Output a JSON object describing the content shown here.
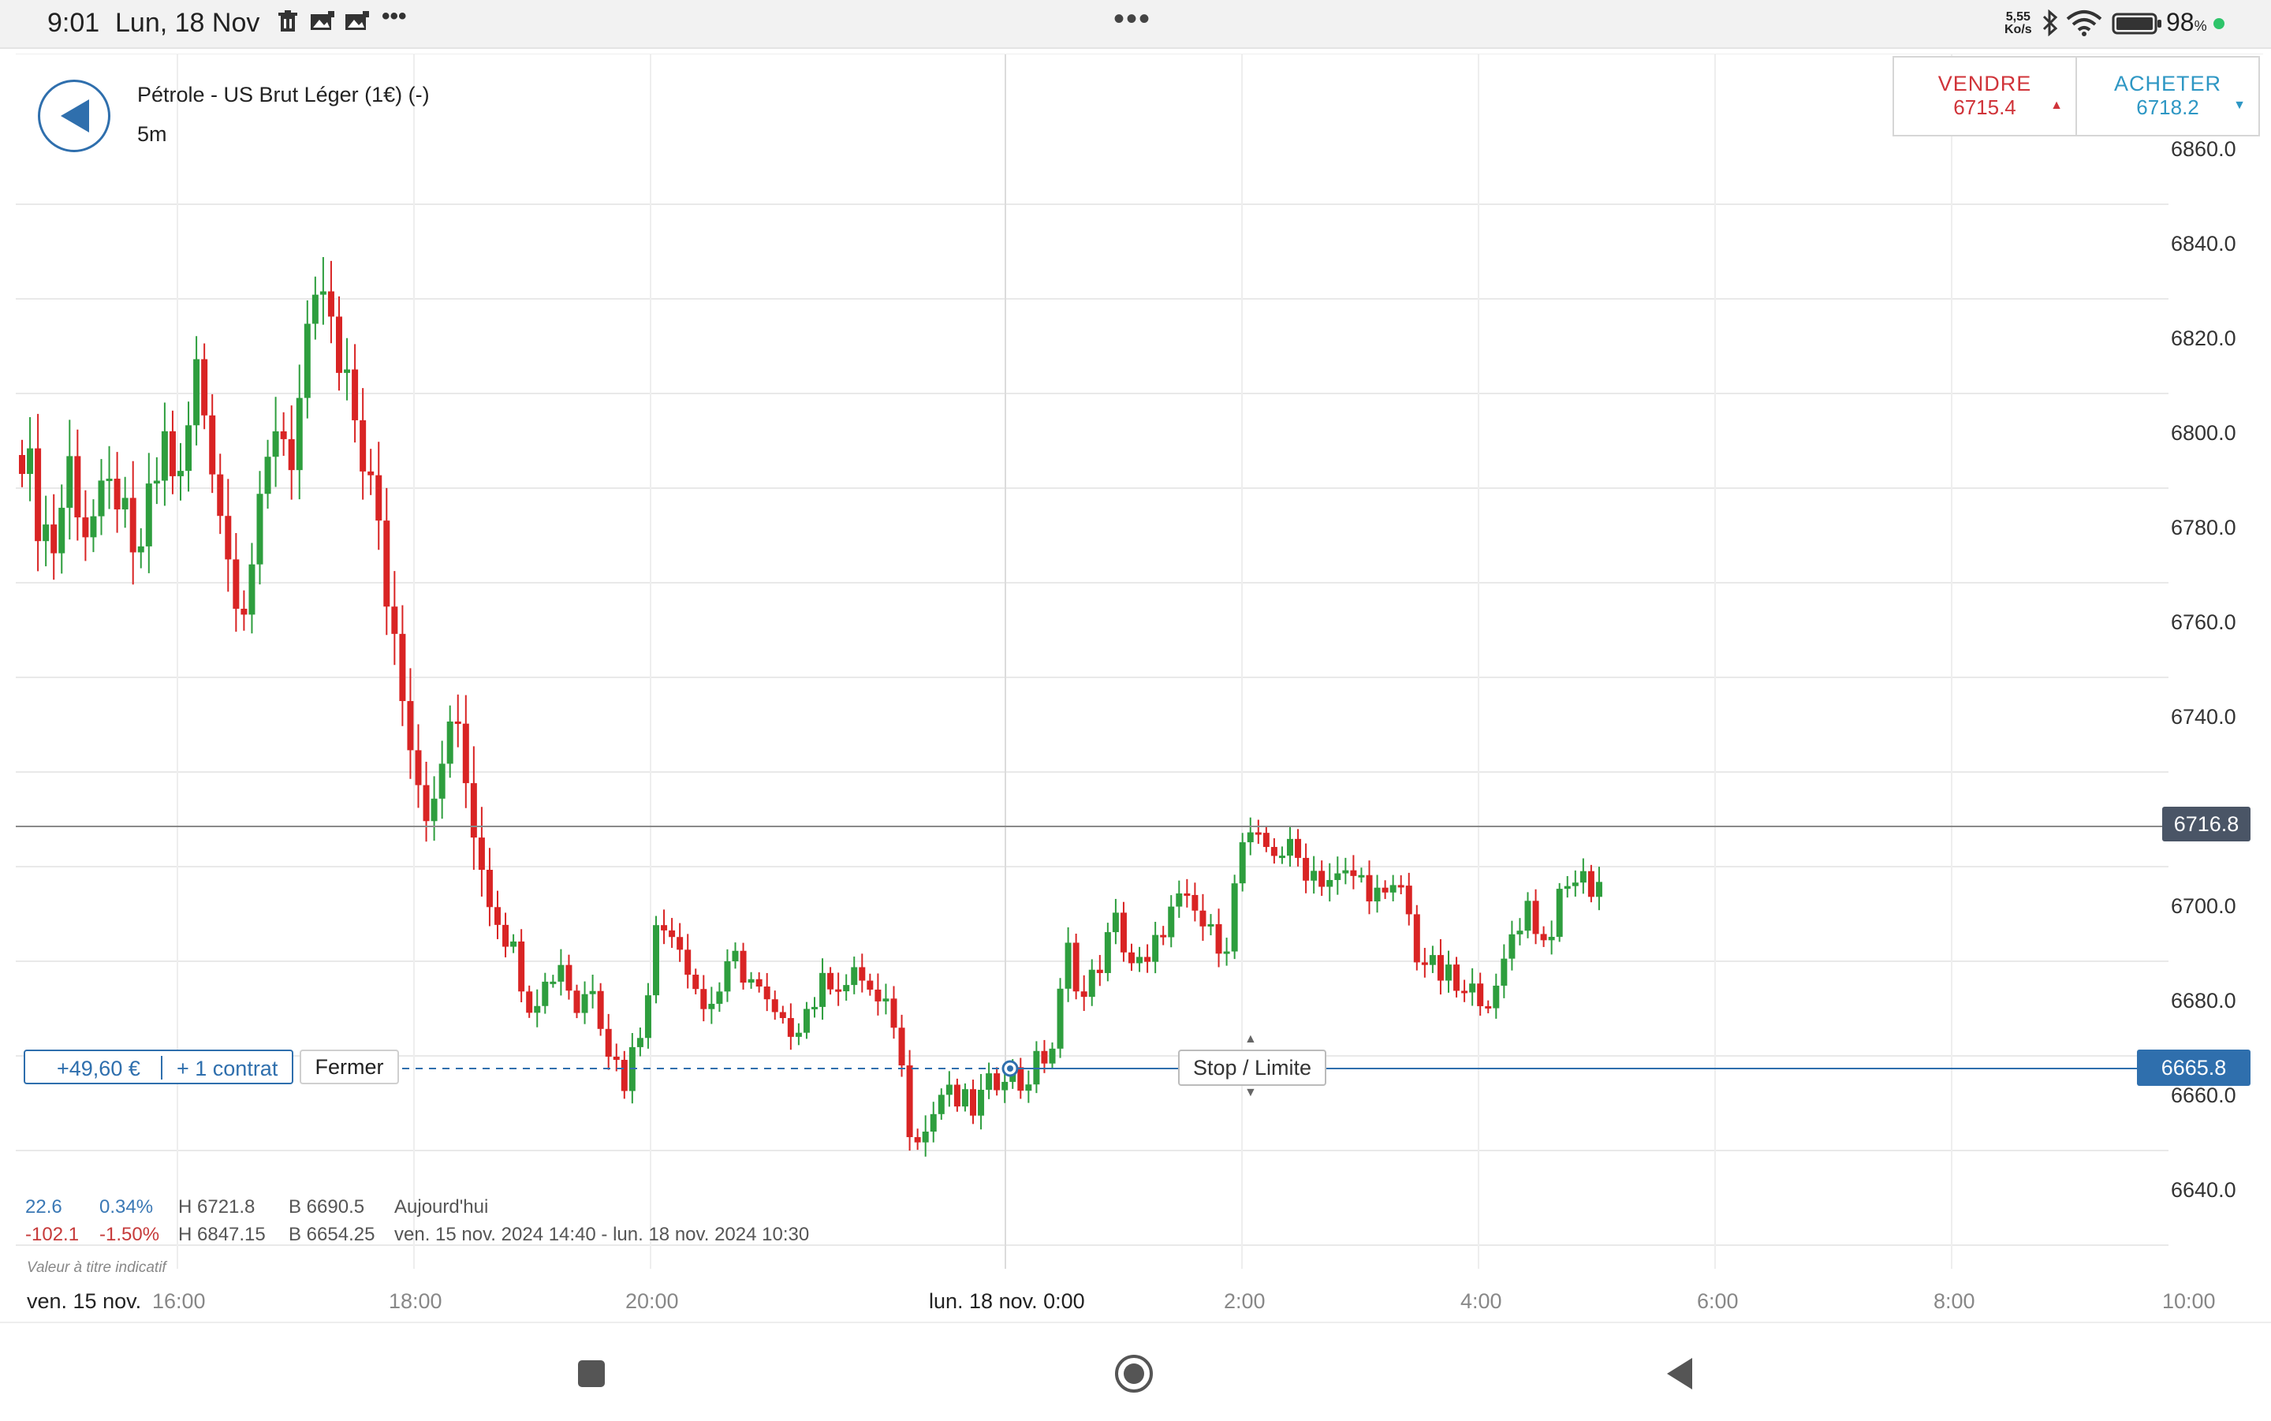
{
  "status_bar": {
    "time": "9:01",
    "date": "Lun, 18 Nov",
    "network_speed_value": "5,55",
    "network_speed_unit": "Ko/s",
    "battery_percent": "98",
    "battery_percent_sign": "%",
    "more_label": "•••",
    "center_dots": "•••",
    "icons": [
      "notification-trash-icon",
      "notification-image-icon",
      "notification-image-icon",
      "more-notifications-icon",
      "bluetooth-icon",
      "wifi-icon",
      "battery-icon",
      "charging-dot-icon"
    ]
  },
  "instrument": {
    "title": "Pétrole - US Brut Léger (1€) (-)",
    "timeframe": "5m"
  },
  "trade": {
    "sell_label": "VENDRE",
    "sell_price": "6715.4",
    "sell_arrow": "▲",
    "buy_label": "ACHETER",
    "buy_price": "6718.2",
    "buy_arrow": "▼"
  },
  "position": {
    "pnl": "+49,60 €",
    "contracts": "+ 1 contrat",
    "close_label": "Fermer",
    "stop_limit_label": "Stop / Limite",
    "stop_up_handle": "▲",
    "stop_down_handle": "▼"
  },
  "price_tags": {
    "current": "6716.8",
    "order": "6665.8"
  },
  "stats": {
    "today": {
      "change": "22.6",
      "pct": "0.34%",
      "high": "H 6721.8",
      "low": "B 6690.5",
      "label": "Aujourd'hui"
    },
    "range": {
      "change": "-102.1",
      "pct": "-1.50%",
      "high": "H 6847.15",
      "low": "B 6654.25",
      "label": "ven. 15 nov. 2024 14:40 - lun. 18 nov. 2024 10:30"
    },
    "note": "Valeur à titre indicatif"
  },
  "colors": {
    "up": "#2e9e3e",
    "down": "#d92424",
    "accent": "#2f6fad",
    "sell": "#d0343a",
    "buy": "#2e97c4"
  },
  "chart_data": {
    "type": "candlestick",
    "title": "",
    "xlabel": "",
    "ylabel": "",
    "ylim": [
      6630,
      6866
    ],
    "y_ticks": [
      "6860.0",
      "6840.0",
      "6820.0",
      "6800.0",
      "6780.0",
      "6760.0",
      "6740.0",
      "6700.0",
      "6680.0",
      "6660.0",
      "6640.0"
    ],
    "x_ticks": [
      "ven. 15 nov.",
      "16:00",
      "18:00",
      "20:00",
      "lun. 18 nov. 0:00",
      "2:00",
      "4:00",
      "6:00",
      "8:00",
      "10:00"
    ],
    "current_price": 6716.8,
    "order_level": 6665.8,
    "waypoints": [
      [
        0,
        6810
      ],
      [
        2,
        6795
      ],
      [
        4,
        6788
      ],
      [
        6,
        6805
      ],
      [
        8,
        6792
      ],
      [
        10,
        6795
      ],
      [
        12,
        6800
      ],
      [
        14,
        6782
      ],
      [
        16,
        6795
      ],
      [
        18,
        6810
      ],
      [
        20,
        6800
      ],
      [
        22,
        6825
      ],
      [
        24,
        6808
      ],
      [
        26,
        6785
      ],
      [
        28,
        6778
      ],
      [
        30,
        6792
      ],
      [
        32,
        6815
      ],
      [
        34,
        6808
      ],
      [
        36,
        6828
      ],
      [
        38,
        6842
      ],
      [
        40,
        6823
      ],
      [
        42,
        6815
      ],
      [
        44,
        6800
      ],
      [
        46,
        6778
      ],
      [
        48,
        6760
      ],
      [
        50,
        6740
      ],
      [
        52,
        6730
      ],
      [
        54,
        6752
      ],
      [
        56,
        6738
      ],
      [
        58,
        6722
      ],
      [
        60,
        6710
      ],
      [
        62,
        6702
      ],
      [
        64,
        6692
      ],
      [
        66,
        6695
      ],
      [
        68,
        6700
      ],
      [
        70,
        6690
      ],
      [
        72,
        6696
      ],
      [
        74,
        6682
      ],
      [
        76,
        6675
      ],
      [
        78,
        6686
      ],
      [
        80,
        6706
      ],
      [
        82,
        6708
      ],
      [
        84,
        6700
      ],
      [
        86,
        6690
      ],
      [
        88,
        6694
      ],
      [
        90,
        6700
      ],
      [
        92,
        6696
      ],
      [
        94,
        6690
      ],
      [
        96,
        6685
      ],
      [
        98,
        6688
      ],
      [
        100,
        6692
      ],
      [
        102,
        6697
      ],
      [
        104,
        6695
      ],
      [
        106,
        6697
      ],
      [
        108,
        6690
      ],
      [
        110,
        6688
      ],
      [
        112,
        6666
      ],
      [
        114,
        6664
      ],
      [
        116,
        6672
      ],
      [
        118,
        6670
      ],
      [
        120,
        6669
      ],
      [
        122,
        6673
      ],
      [
        124,
        6678
      ],
      [
        126,
        6674
      ],
      [
        128,
        6678
      ],
      [
        130,
        6682
      ],
      [
        132,
        6702
      ],
      [
        134,
        6692
      ],
      [
        136,
        6700
      ],
      [
        138,
        6708
      ],
      [
        140,
        6700
      ],
      [
        142,
        6698
      ],
      [
        144,
        6708
      ],
      [
        146,
        6712
      ],
      [
        148,
        6710
      ],
      [
        150,
        6705
      ],
      [
        152,
        6705
      ],
      [
        154,
        6725
      ],
      [
        156,
        6724
      ],
      [
        158,
        6724
      ],
      [
        160,
        6723
      ],
      [
        162,
        6720
      ],
      [
        164,
        6718
      ],
      [
        166,
        6717
      ],
      [
        168,
        6718
      ],
      [
        170,
        6716
      ],
      [
        172,
        6712
      ],
      [
        174,
        6716
      ],
      [
        176,
        6702
      ],
      [
        178,
        6698
      ],
      [
        180,
        6696
      ],
      [
        182,
        6692
      ],
      [
        184,
        6694
      ],
      [
        186,
        6692
      ],
      [
        188,
        6706
      ],
      [
        190,
        6712
      ],
      [
        192,
        6704
      ],
      [
        194,
        6712
      ],
      [
        196,
        6718
      ],
      [
        198,
        6716
      ],
      [
        199,
        6717
      ]
    ]
  }
}
